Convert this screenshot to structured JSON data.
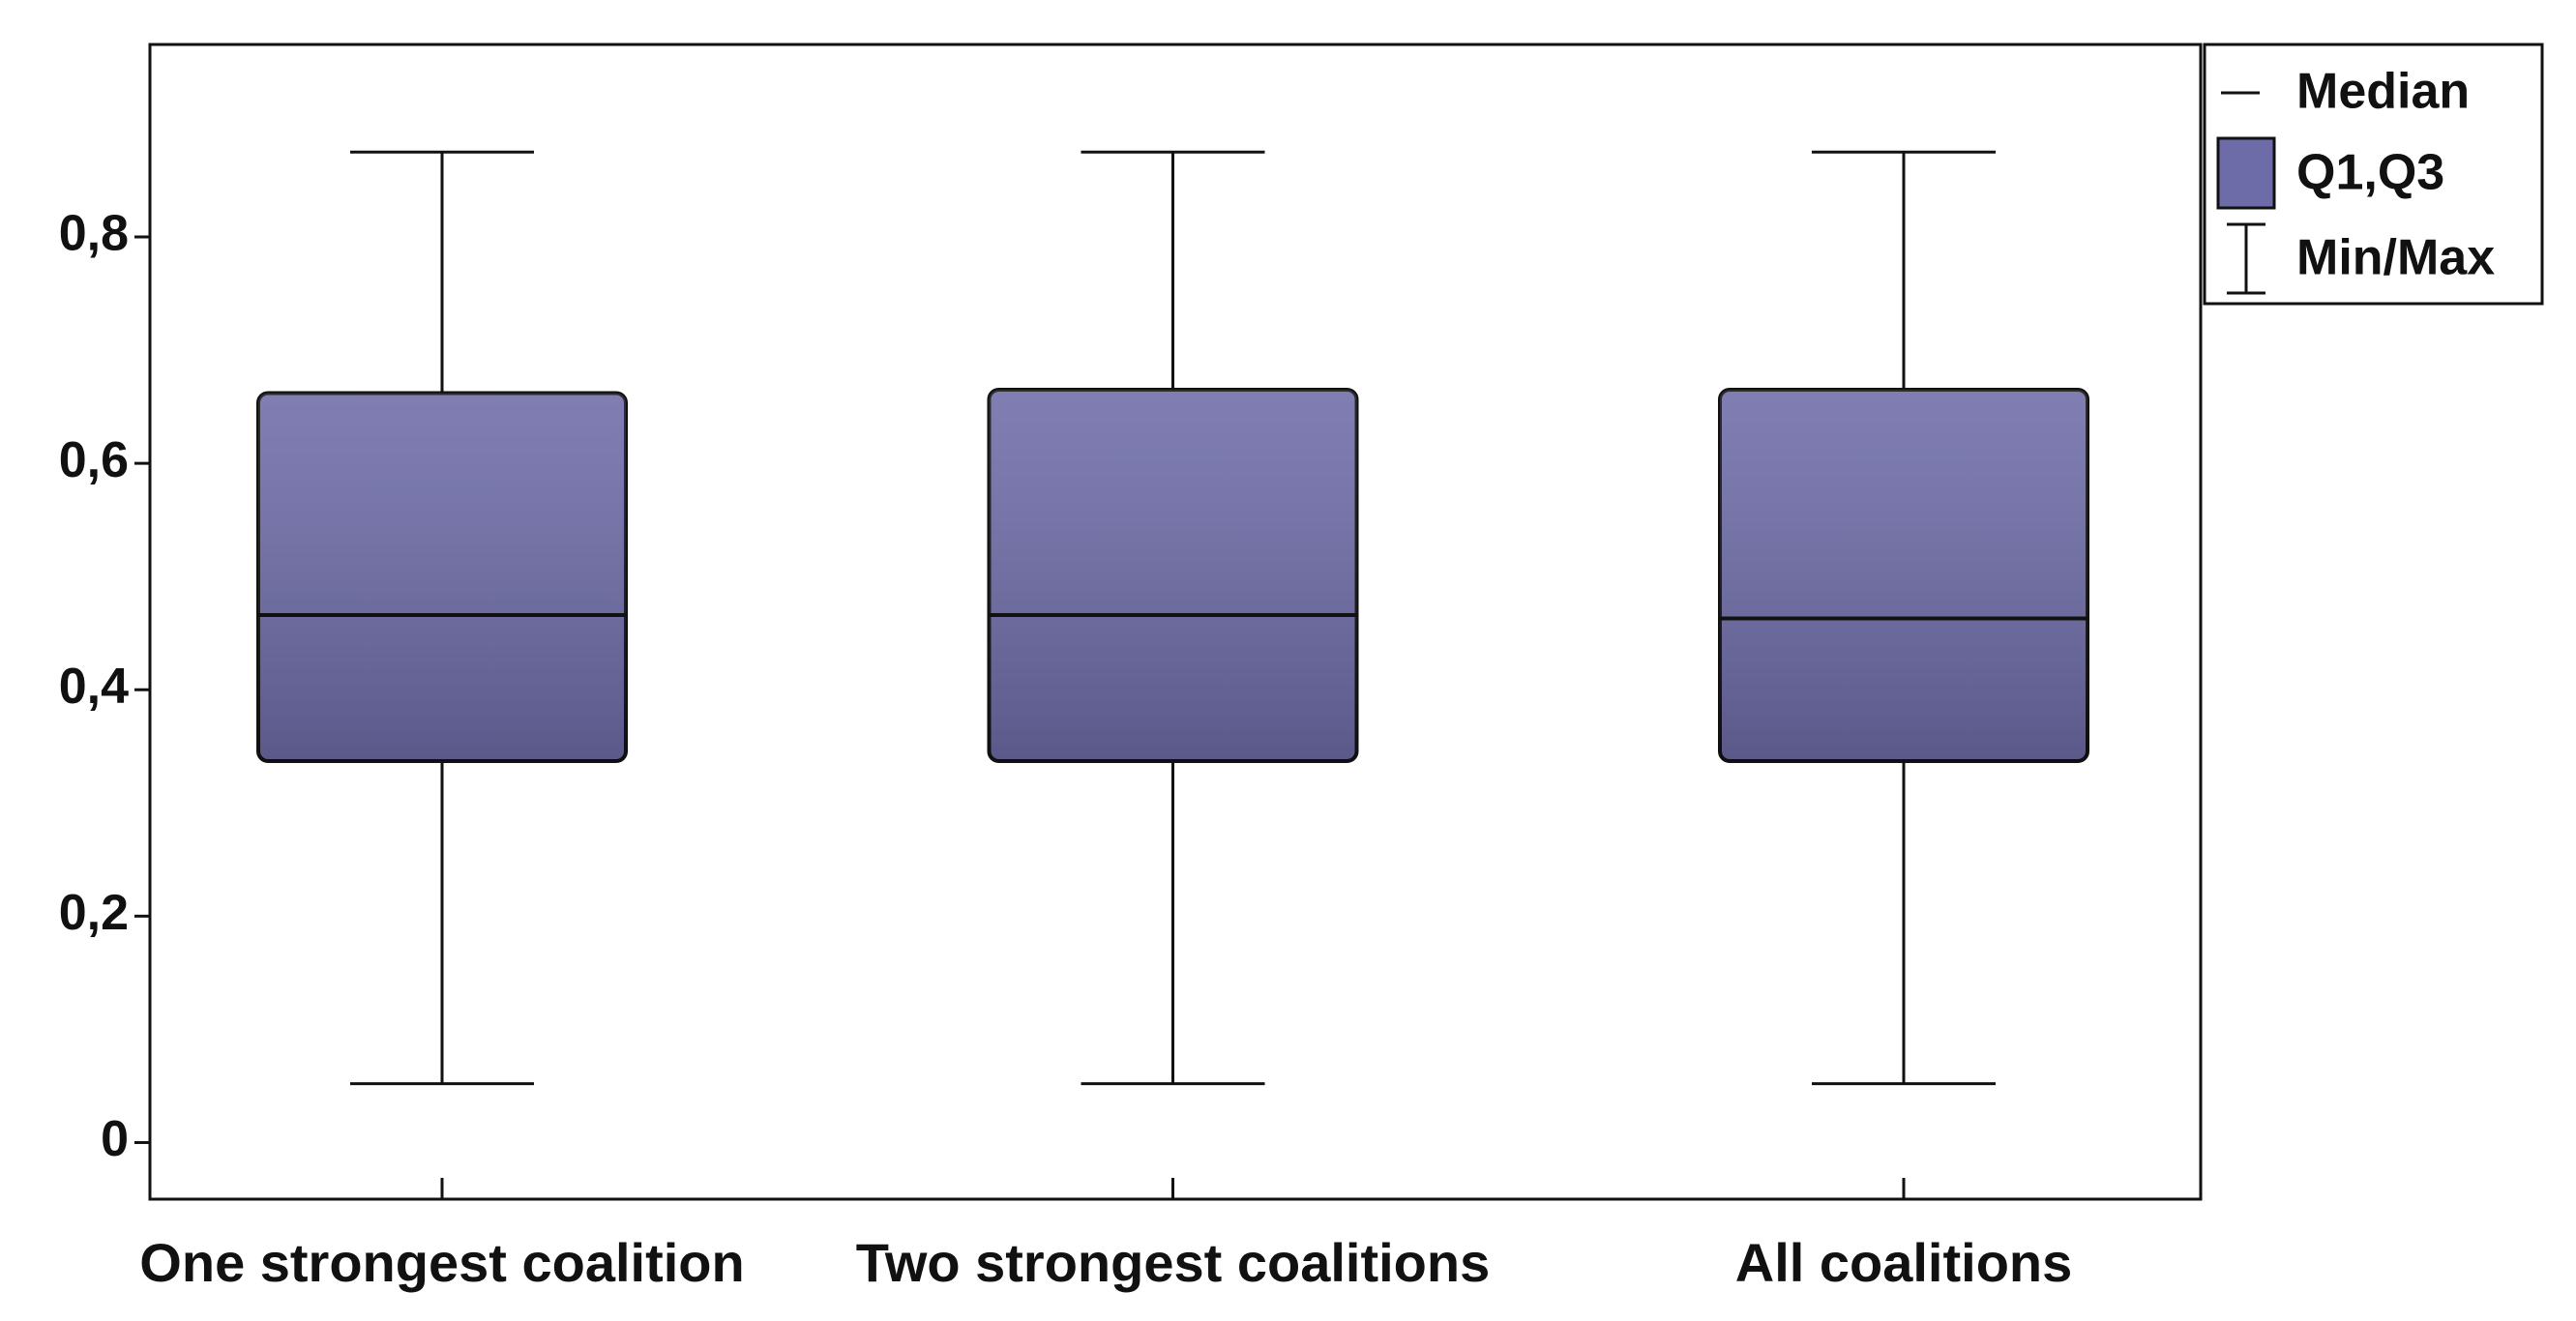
{
  "chart_data": {
    "type": "box",
    "categories": [
      "One strongest coalition",
      "Two strongest coalitions",
      "All coalitions"
    ],
    "boxes": [
      {
        "min": 0.052,
        "q1": 0.337,
        "median": 0.466,
        "q3": 0.662,
        "max": 0.875
      },
      {
        "min": 0.052,
        "q1": 0.337,
        "median": 0.466,
        "q3": 0.665,
        "max": 0.875
      },
      {
        "min": 0.052,
        "q1": 0.337,
        "median": 0.463,
        "q3": 0.665,
        "max": 0.875
      }
    ],
    "color": "#6e6ca8",
    "ylim": [
      -0.05,
      0.97
    ],
    "yticks": [
      0,
      {
        "value": 0.2,
        "label": "0,2"
      },
      {
        "value": 0.4,
        "label": "0,4"
      },
      {
        "value": 0.6,
        "label": "0,6"
      },
      {
        "value": 0.8,
        "label": "0,8"
      }
    ],
    "legend": {
      "median": "Median",
      "box": "Q1,Q3",
      "whisker": "Min/Max"
    },
    "legend_position": "upper-right-outside"
  }
}
